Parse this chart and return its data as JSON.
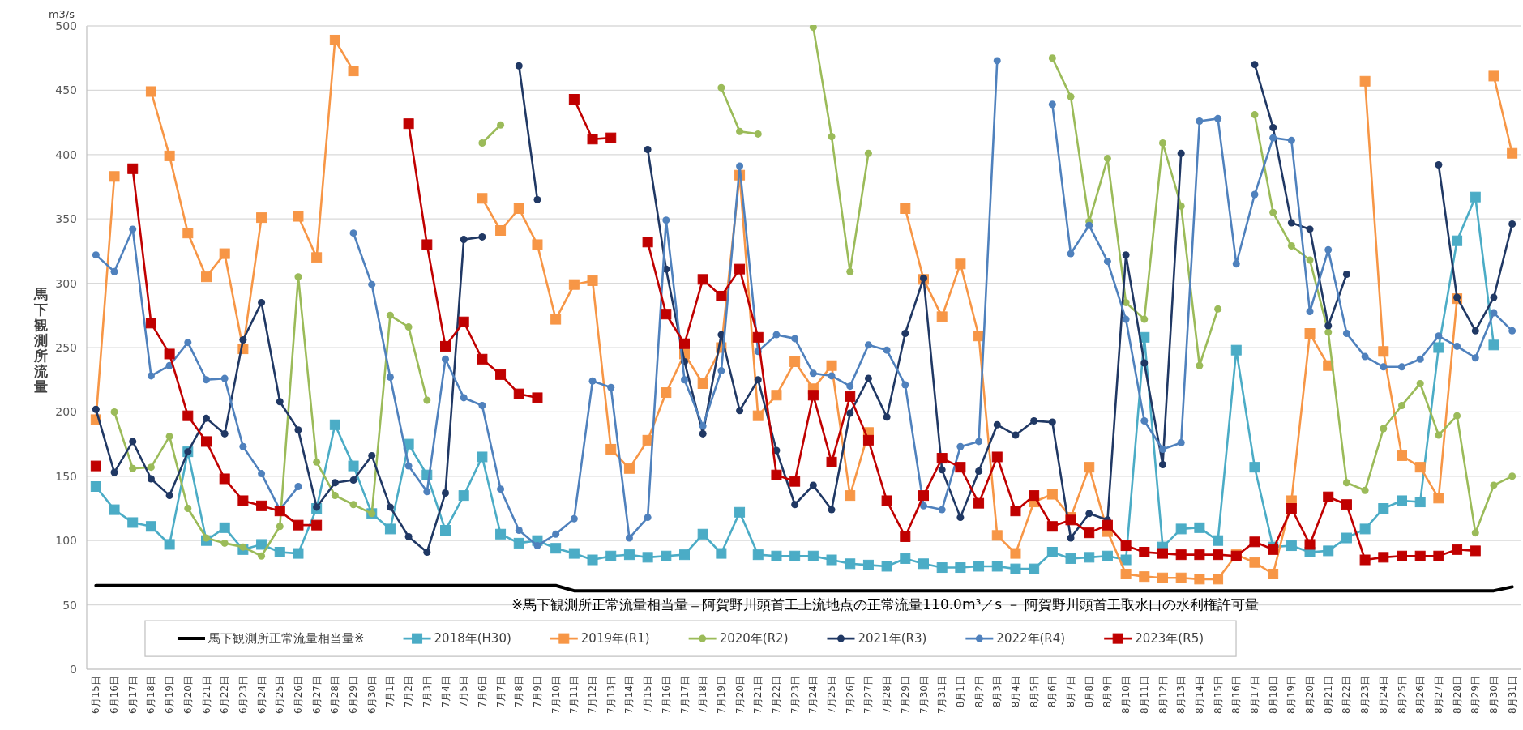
{
  "chart_data": {
    "type": "line",
    "ylabel": "馬下観測所流量",
    "annotations": [
      "m3/s",
      "※馬下観測所正常流量相当量＝阿賀野川頭首工上流地点の正常流量110.0m³／s － 阿賀野川頭首工取水口の水利権許可量"
    ],
    "categories": [
      "6月15日",
      "6月16日",
      "6月17日",
      "6月18日",
      "6月19日",
      "6月20日",
      "6月21日",
      "6月22日",
      "6月23日",
      "6月24日",
      "6月25日",
      "6月26日",
      "6月27日",
      "6月28日",
      "6月29日",
      "6月30日",
      "7月1日",
      "7月2日",
      "7月3日",
      "7月4日",
      "7月5日",
      "7月6日",
      "7月7日",
      "7月8日",
      "7月9日",
      "7月10日",
      "7月11日",
      "7月12日",
      "7月13日",
      "7月14日",
      "7月15日",
      "7月16日",
      "7月17日",
      "7月18日",
      "7月19日",
      "7月20日",
      "7月21日",
      "7月22日",
      "7月23日",
      "7月24日",
      "7月25日",
      "7月26日",
      "7月27日",
      "7月28日",
      "7月29日",
      "7月30日",
      "7月31日",
      "8月1日",
      "8月2日",
      "8月3日",
      "8月4日",
      "8月5日",
      "8月6日",
      "8月7日",
      "8月8日",
      "8月9日",
      "8月10日",
      "8月11日",
      "8月12日",
      "8月13日",
      "8月14日",
      "8月15日",
      "8月16日",
      "8月17日",
      "8月18日",
      "8月19日",
      "8月20日",
      "8月21日",
      "8月22日",
      "8月23日",
      "8月24日",
      "8月25日",
      "8月26日",
      "8月27日",
      "8月28日",
      "8月29日",
      "8月30日",
      "8月31日"
    ],
    "ylim": [
      0,
      500
    ],
    "yticks": [
      0,
      50,
      100,
      150,
      200,
      250,
      300,
      350,
      400,
      450,
      500
    ],
    "grid": "y",
    "legend": "bottom",
    "series": [
      {
        "name": "馬下観測所正常流量相当量※",
        "color": "#000000",
        "marker": "none",
        "values": [
          65,
          65,
          65,
          65,
          65,
          65,
          65,
          65,
          65,
          65,
          65,
          65,
          65,
          65,
          65,
          65,
          65,
          65,
          65,
          65,
          65,
          65,
          65,
          65,
          65,
          65,
          61,
          61,
          61,
          61,
          61,
          61,
          61,
          61,
          61,
          61,
          61,
          61,
          61,
          61,
          61,
          61,
          61,
          61,
          61,
          61,
          61,
          61,
          61,
          61,
          61,
          61,
          61,
          61,
          61,
          61,
          61,
          61,
          61,
          61,
          61,
          61,
          61,
          61,
          61,
          61,
          61,
          61,
          61,
          61,
          61,
          61,
          61,
          61,
          61,
          61,
          61,
          64
        ]
      },
      {
        "name": "2018年(H30)",
        "color": "#4bacc6",
        "marker": "square",
        "values": [
          142,
          124,
          114,
          111,
          97,
          169,
          100,
          110,
          93,
          97,
          91,
          90,
          125,
          190,
          158,
          121,
          109,
          175,
          151,
          108,
          135,
          165,
          105,
          98,
          100,
          94,
          90,
          85,
          88,
          89,
          87,
          88,
          89,
          105,
          90,
          122,
          89,
          88,
          88,
          88,
          85,
          82,
          81,
          80,
          86,
          82,
          79,
          79,
          80,
          80,
          78,
          78,
          91,
          86,
          87,
          88,
          85,
          258,
          95,
          109,
          110,
          100,
          248,
          157,
          95,
          96,
          91,
          92,
          102,
          109,
          125,
          131,
          130,
          250,
          333,
          367,
          252,
          null
        ]
      },
      {
        "name": "2019年(R1)",
        "color": "#f79646",
        "marker": "square",
        "values": [
          194,
          383,
          null,
          449,
          399,
          339,
          305,
          323,
          249,
          351,
          null,
          352,
          320,
          489,
          465,
          null,
          null,
          null,
          null,
          null,
          null,
          366,
          341,
          358,
          330,
          272,
          299,
          302,
          171,
          156,
          178,
          215,
          245,
          222,
          250,
          384,
          197,
          213,
          239,
          218,
          236,
          135,
          184,
          null,
          358,
          303,
          274,
          315,
          259,
          104,
          90,
          130,
          136,
          118,
          157,
          107,
          74,
          72,
          71,
          71,
          70,
          70,
          89,
          83,
          74,
          131,
          261,
          236,
          null,
          457,
          247,
          166,
          157,
          133,
          288,
          null,
          461,
          401
        ]
      },
      {
        "name": "2020年(R2)",
        "color": "#9bbb59",
        "marker": "circle",
        "values": [
          null,
          200,
          156,
          157,
          181,
          125,
          102,
          98,
          95,
          88,
          111,
          305,
          161,
          135,
          128,
          121,
          275,
          266,
          209,
          null,
          null,
          409,
          423,
          null,
          null,
          null,
          null,
          null,
          null,
          null,
          null,
          null,
          null,
          null,
          452,
          418,
          416,
          null,
          null,
          499,
          414,
          309,
          401,
          null,
          null,
          null,
          null,
          null,
          null,
          null,
          null,
          null,
          475,
          445,
          348,
          397,
          285,
          272,
          409,
          360,
          236,
          280,
          null,
          431,
          355,
          329,
          318,
          262,
          145,
          139,
          187,
          205,
          222,
          182,
          197,
          106,
          143,
          150
        ]
      },
      {
        "name": "2021年(R3)",
        "color": "#203864",
        "marker": "circle",
        "values": [
          202,
          153,
          177,
          148,
          135,
          169,
          195,
          183,
          256,
          285,
          208,
          186,
          126,
          145,
          147,
          166,
          126,
          103,
          91,
          137,
          334,
          336,
          null,
          469,
          365,
          null,
          null,
          null,
          null,
          null,
          404,
          311,
          239,
          183,
          260,
          201,
          225,
          170,
          128,
          143,
          124,
          199,
          226,
          196,
          261,
          304,
          155,
          118,
          154,
          190,
          182,
          193,
          192,
          102,
          121,
          116,
          322,
          238,
          159,
          401,
          null,
          null,
          null,
          470,
          421,
          347,
          342,
          267,
          307,
          null,
          null,
          null,
          null,
          392,
          289,
          263,
          289,
          346
        ]
      },
      {
        "name": "2022年(R4)",
        "color": "#4f81bd",
        "marker": "circle",
        "values": [
          322,
          309,
          342,
          228,
          236,
          254,
          225,
          226,
          173,
          152,
          124,
          142,
          null,
          null,
          339,
          299,
          227,
          158,
          138,
          241,
          211,
          205,
          140,
          108,
          96,
          105,
          117,
          224,
          219,
          102,
          118,
          349,
          225,
          189,
          232,
          391,
          247,
          260,
          257,
          230,
          228,
          220,
          252,
          248,
          221,
          127,
          124,
          173,
          177,
          473,
          null,
          null,
          439,
          323,
          345,
          317,
          272,
          193,
          171,
          176,
          426,
          428,
          315,
          369,
          413,
          411,
          278,
          326,
          261,
          243,
          235,
          235,
          241,
          259,
          251,
          242,
          277,
          263
        ]
      },
      {
        "name": "2023年(R5)",
        "color": "#c00000",
        "marker": "square",
        "values": [
          158,
          null,
          389,
          269,
          245,
          197,
          177,
          148,
          131,
          127,
          123,
          112,
          112,
          null,
          null,
          null,
          null,
          424,
          330,
          251,
          270,
          241,
          229,
          214,
          211,
          null,
          443,
          412,
          413,
          null,
          332,
          276,
          253,
          303,
          290,
          311,
          258,
          151,
          146,
          213,
          161,
          212,
          178,
          131,
          103,
          135,
          164,
          157,
          129,
          165,
          123,
          135,
          111,
          116,
          106,
          112,
          96,
          91,
          90,
          89,
          89,
          89,
          88,
          99,
          93,
          125,
          97,
          134,
          128,
          85,
          87,
          88,
          88,
          88,
          93,
          92,
          null,
          null
        ]
      }
    ]
  }
}
